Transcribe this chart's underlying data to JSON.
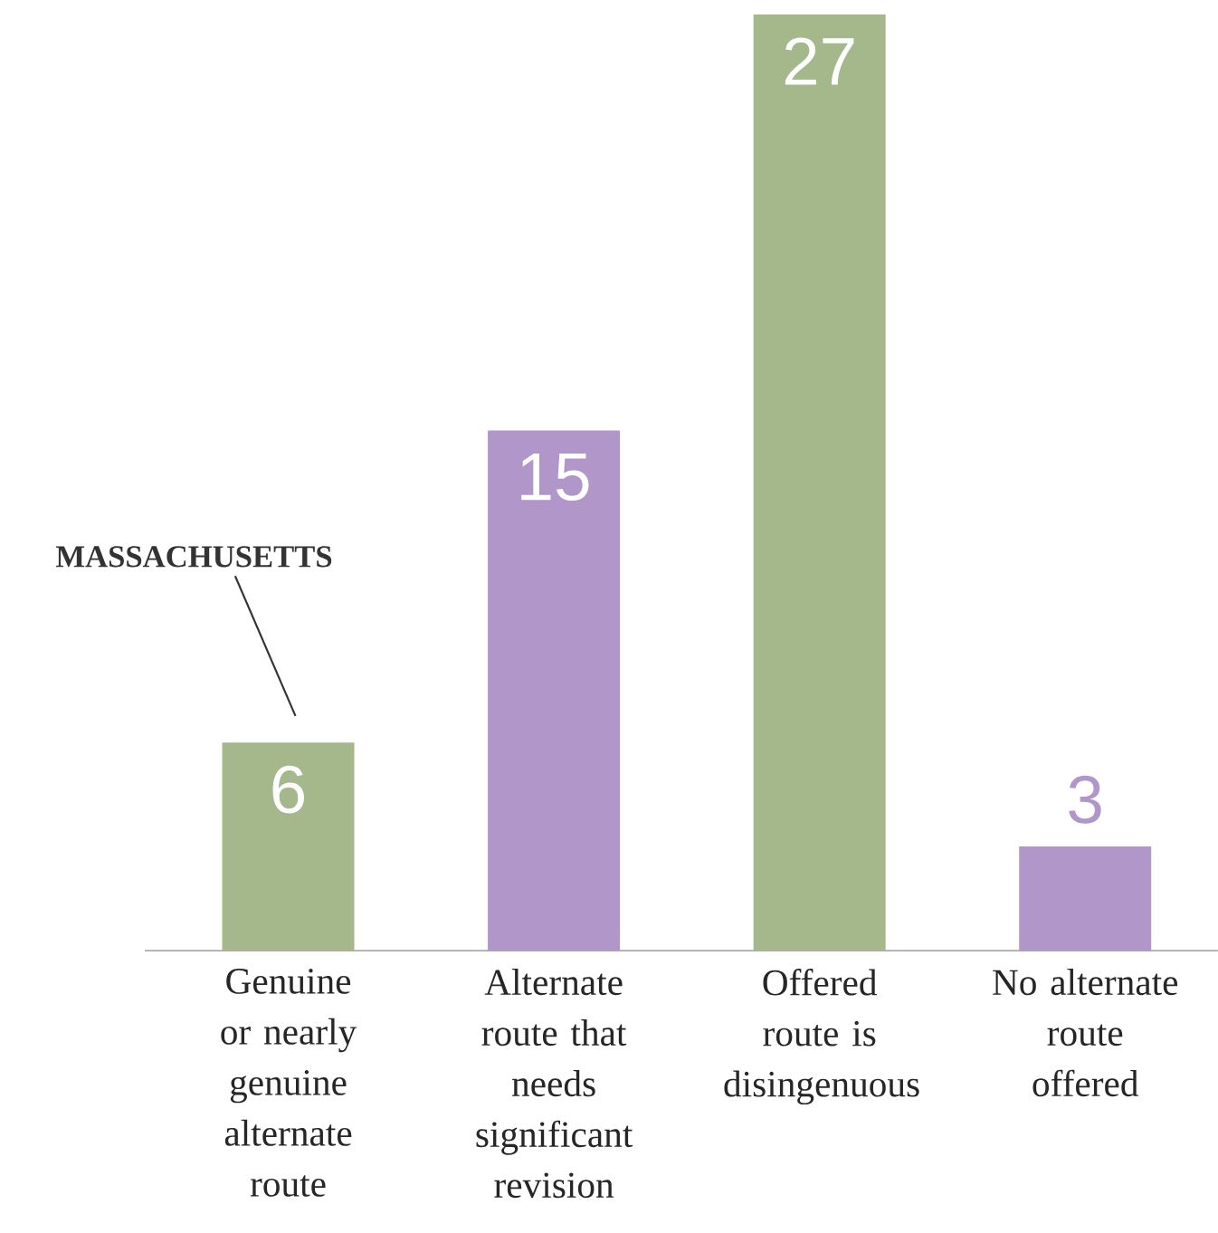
{
  "chart_data": {
    "type": "bar",
    "categories": [
      "Genuine or nearly genuine alternate route",
      "Alternate route that needs significant revision",
      "Offered route is disingenuous",
      "No alternate route offered"
    ],
    "values": [
      6,
      15,
      27,
      3
    ],
    "colors": [
      "#a5b88c",
      "#b197c9",
      "#a5b88c",
      "#b197c9"
    ],
    "ylim": [
      0,
      27
    ],
    "data_labels": true,
    "grid": false,
    "tick_labels": "x",
    "annotations": [
      "MASSACHUSETTS"
    ]
  }
}
